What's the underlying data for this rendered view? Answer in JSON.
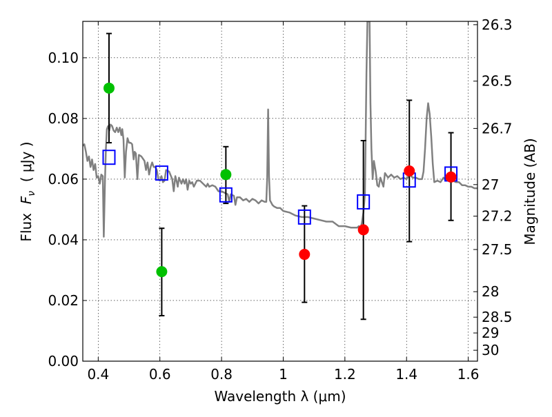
{
  "chart_data": {
    "type": "scatter",
    "xlabel": "Wavelength  λ (μm)",
    "ylabel": "Flux  F_ν  ( μJy )",
    "ylabel_parts": {
      "prefix": "Flux  ",
      "symbol": "F",
      "subscript": "ν",
      "suffix": "  ( μJy )"
    },
    "ylabel_right": "Magnitude (AB)",
    "xlim": [
      0.35,
      1.63
    ],
    "ylim": [
      0.0,
      0.112
    ],
    "grid": true,
    "x_ticks": [
      {
        "value": 0.4,
        "label": "0.4"
      },
      {
        "value": 0.6,
        "label": "0.6"
      },
      {
        "value": 0.8,
        "label": "0.8"
      },
      {
        "value": 1.0,
        "label": "1"
      },
      {
        "value": 1.2,
        "label": "1.2"
      },
      {
        "value": 1.4,
        "label": "1.4"
      },
      {
        "value": 1.6,
        "label": "1.6"
      }
    ],
    "y_ticks": [
      {
        "value": 0.0,
        "label": "0.00"
      },
      {
        "value": 0.02,
        "label": "0.02"
      },
      {
        "value": 0.04,
        "label": "0.04"
      },
      {
        "value": 0.06,
        "label": "0.06"
      },
      {
        "value": 0.08,
        "label": "0.08"
      },
      {
        "value": 0.1,
        "label": "0.10"
      }
    ],
    "right_ticks": [
      {
        "flux": 0.1109,
        "label": "26.3"
      },
      {
        "flux": 0.0923,
        "label": "26.5"
      },
      {
        "flux": 0.0767,
        "label": "26.7"
      },
      {
        "flux": 0.0582,
        "label": "27"
      },
      {
        "flux": 0.0478,
        "label": "27.2"
      },
      {
        "flux": 0.0368,
        "label": "27.5"
      },
      {
        "flux": 0.0229,
        "label": "28"
      },
      {
        "flux": 0.0145,
        "label": "28.5"
      },
      {
        "flux": 0.0093,
        "label": "29"
      },
      {
        "flux": 0.0036,
        "label": "30"
      }
    ],
    "colors": {
      "spectrum": "#808080",
      "green_points": "#00c000",
      "red_points": "#ff0000",
      "model_boxes": "#0000ff",
      "errorbars": "#000000"
    },
    "series": [
      {
        "marker": "circle",
        "color": "#00c000",
        "points": [
          {
            "x": 0.435,
            "y": 0.09,
            "ylo": 0.072,
            "yhi": 0.108
          },
          {
            "x": 0.606,
            "y": 0.0295,
            "ylo": 0.015,
            "yhi": 0.0438
          },
          {
            "x": 0.814,
            "y": 0.0615,
            "ylo": 0.052,
            "yhi": 0.0707
          }
        ]
      },
      {
        "marker": "circle",
        "color": "#ff0000",
        "points": [
          {
            "x": 1.069,
            "y": 0.0352,
            "ylo": 0.0194,
            "yhi": 0.0512
          },
          {
            "x": 1.26,
            "y": 0.0433,
            "ylo": 0.0138,
            "yhi": 0.0727
          },
          {
            "x": 1.409,
            "y": 0.0627,
            "ylo": 0.0394,
            "yhi": 0.086
          },
          {
            "x": 1.544,
            "y": 0.0607,
            "ylo": 0.0464,
            "yhi": 0.0753
          }
        ]
      },
      {
        "marker": "open-square",
        "color": "#0000ff",
        "points": [
          {
            "x": 0.435,
            "y": 0.0672
          },
          {
            "x": 0.606,
            "y": 0.062
          },
          {
            "x": 0.814,
            "y": 0.0548
          },
          {
            "x": 1.069,
            "y": 0.0475
          },
          {
            "x": 1.26,
            "y": 0.0525
          },
          {
            "x": 1.409,
            "y": 0.0597
          },
          {
            "x": 1.544,
            "y": 0.0617
          }
        ]
      },
      {
        "marker": "line",
        "color": "#808080",
        "points": [
          [
            0.35,
            0.071
          ],
          [
            0.355,
            0.0715
          ],
          [
            0.36,
            0.069
          ],
          [
            0.365,
            0.066
          ],
          [
            0.37,
            0.0675
          ],
          [
            0.375,
            0.064
          ],
          [
            0.38,
            0.0665
          ],
          [
            0.385,
            0.063
          ],
          [
            0.39,
            0.065
          ],
          [
            0.395,
            0.0605
          ],
          [
            0.4,
            0.061
          ],
          [
            0.405,
            0.0585
          ],
          [
            0.41,
            0.0615
          ],
          [
            0.415,
            0.061
          ],
          [
            0.418,
            0.041
          ],
          [
            0.422,
            0.06
          ],
          [
            0.425,
            0.07
          ],
          [
            0.428,
            0.0765
          ],
          [
            0.432,
            0.0775
          ],
          [
            0.436,
            0.076
          ],
          [
            0.44,
            0.078
          ],
          [
            0.445,
            0.0775
          ],
          [
            0.45,
            0.076
          ],
          [
            0.455,
            0.0755
          ],
          [
            0.46,
            0.077
          ],
          [
            0.465,
            0.0755
          ],
          [
            0.47,
            0.077
          ],
          [
            0.475,
            0.0745
          ],
          [
            0.478,
            0.0765
          ],
          [
            0.482,
            0.073
          ],
          [
            0.486,
            0.0605
          ],
          [
            0.49,
            0.069
          ],
          [
            0.495,
            0.0735
          ],
          [
            0.5,
            0.072
          ],
          [
            0.505,
            0.072
          ],
          [
            0.51,
            0.0715
          ],
          [
            0.515,
            0.0665
          ],
          [
            0.518,
            0.069
          ],
          [
            0.522,
            0.0685
          ],
          [
            0.527,
            0.06
          ],
          [
            0.532,
            0.068
          ],
          [
            0.54,
            0.0675
          ],
          [
            0.55,
            0.066
          ],
          [
            0.555,
            0.063
          ],
          [
            0.56,
            0.0655
          ],
          [
            0.565,
            0.0615
          ],
          [
            0.57,
            0.064
          ],
          [
            0.575,
            0.0655
          ],
          [
            0.58,
            0.064
          ],
          [
            0.585,
            0.064
          ],
          [
            0.59,
            0.063
          ],
          [
            0.595,
            0.06
          ],
          [
            0.6,
            0.0595
          ],
          [
            0.605,
            0.061
          ],
          [
            0.61,
            0.059
          ],
          [
            0.615,
            0.0595
          ],
          [
            0.62,
            0.063
          ],
          [
            0.63,
            0.0625
          ],
          [
            0.64,
            0.06
          ],
          [
            0.645,
            0.056
          ],
          [
            0.65,
            0.061
          ],
          [
            0.655,
            0.059
          ],
          [
            0.658,
            0.0575
          ],
          [
            0.662,
            0.0605
          ],
          [
            0.67,
            0.0585
          ],
          [
            0.675,
            0.06
          ],
          [
            0.68,
            0.0585
          ],
          [
            0.685,
            0.06
          ],
          [
            0.69,
            0.0565
          ],
          [
            0.695,
            0.0595
          ],
          [
            0.7,
            0.0585
          ],
          [
            0.705,
            0.059
          ],
          [
            0.71,
            0.0575
          ],
          [
            0.72,
            0.0595
          ],
          [
            0.73,
            0.0595
          ],
          [
            0.74,
            0.0585
          ],
          [
            0.75,
            0.0575
          ],
          [
            0.755,
            0.0585
          ],
          [
            0.76,
            0.0575
          ],
          [
            0.77,
            0.058
          ],
          [
            0.78,
            0.0575
          ],
          [
            0.79,
            0.056
          ],
          [
            0.8,
            0.056
          ],
          [
            0.81,
            0.0555
          ],
          [
            0.82,
            0.055
          ],
          [
            0.825,
            0.0525
          ],
          [
            0.83,
            0.055
          ],
          [
            0.84,
            0.0545
          ],
          [
            0.845,
            0.0515
          ],
          [
            0.85,
            0.054
          ],
          [
            0.86,
            0.054
          ],
          [
            0.87,
            0.053
          ],
          [
            0.88,
            0.0535
          ],
          [
            0.89,
            0.0525
          ],
          [
            0.9,
            0.0535
          ],
          [
            0.91,
            0.053
          ],
          [
            0.92,
            0.052
          ],
          [
            0.93,
            0.053
          ],
          [
            0.94,
            0.0525
          ],
          [
            0.945,
            0.0525
          ],
          [
            0.948,
            0.06
          ],
          [
            0.951,
            0.083
          ],
          [
            0.954,
            0.061
          ],
          [
            0.957,
            0.053
          ],
          [
            0.965,
            0.0515
          ],
          [
            0.97,
            0.051
          ],
          [
            0.98,
            0.0505
          ],
          [
            0.99,
            0.0505
          ],
          [
            1.0,
            0.0495
          ],
          [
            1.02,
            0.049
          ],
          [
            1.04,
            0.048
          ],
          [
            1.06,
            0.0475
          ],
          [
            1.08,
            0.0475
          ],
          [
            1.1,
            0.047
          ],
          [
            1.12,
            0.0465
          ],
          [
            1.14,
            0.046
          ],
          [
            1.16,
            0.046
          ],
          [
            1.18,
            0.0445
          ],
          [
            1.2,
            0.0445
          ],
          [
            1.22,
            0.044
          ],
          [
            1.24,
            0.044
          ],
          [
            1.245,
            0.0445
          ],
          [
            1.25,
            0.0435
          ],
          [
            1.255,
            0.0455
          ],
          [
            1.26,
            0.049
          ],
          [
            1.265,
            0.055
          ],
          [
            1.27,
            0.095
          ],
          [
            1.273,
            0.112
          ],
          [
            1.28,
            0.112
          ],
          [
            1.283,
            0.085
          ],
          [
            1.286,
            0.07
          ],
          [
            1.29,
            0.06
          ],
          [
            1.294,
            0.066
          ],
          [
            1.3,
            0.0625
          ],
          [
            1.305,
            0.058
          ],
          [
            1.31,
            0.0575
          ],
          [
            1.315,
            0.0605
          ],
          [
            1.32,
            0.059
          ],
          [
            1.325,
            0.0575
          ],
          [
            1.33,
            0.062
          ],
          [
            1.34,
            0.0605
          ],
          [
            1.35,
            0.0615
          ],
          [
            1.36,
            0.0605
          ],
          [
            1.37,
            0.061
          ],
          [
            1.38,
            0.06
          ],
          [
            1.39,
            0.0605
          ],
          [
            1.4,
            0.06
          ],
          [
            1.41,
            0.0615
          ],
          [
            1.42,
            0.0605
          ],
          [
            1.43,
            0.0605
          ],
          [
            1.44,
            0.06
          ],
          [
            1.45,
            0.06
          ],
          [
            1.455,
            0.0625
          ],
          [
            1.46,
            0.07
          ],
          [
            1.465,
            0.08
          ],
          [
            1.47,
            0.085
          ],
          [
            1.475,
            0.0815
          ],
          [
            1.48,
            0.074
          ],
          [
            1.485,
            0.065
          ],
          [
            1.49,
            0.059
          ],
          [
            1.5,
            0.0595
          ],
          [
            1.51,
            0.059
          ],
          [
            1.52,
            0.0605
          ],
          [
            1.53,
            0.0595
          ],
          [
            1.54,
            0.06
          ],
          [
            1.55,
            0.0595
          ],
          [
            1.56,
            0.059
          ],
          [
            1.57,
            0.059
          ],
          [
            1.58,
            0.058
          ],
          [
            1.59,
            0.058
          ],
          [
            1.6,
            0.0575
          ],
          [
            1.61,
            0.0575
          ],
          [
            1.62,
            0.057
          ],
          [
            1.63,
            0.057
          ]
        ]
      }
    ]
  }
}
